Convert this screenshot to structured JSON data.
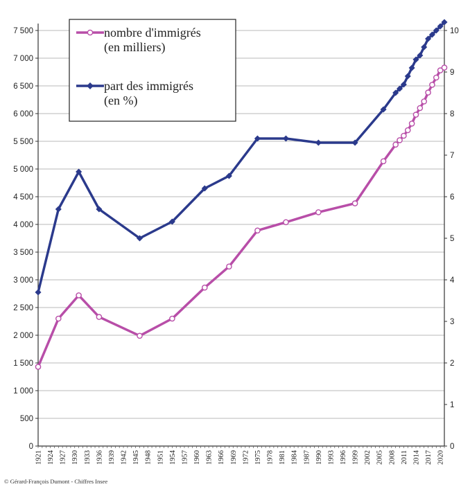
{
  "credit": "© Gérard-François Dumont - Chiffres Insee",
  "colors": {
    "count": "#b84ea8",
    "share": "#2b3a8c",
    "grid": "#b8b8b8"
  },
  "chart_data": {
    "type": "line",
    "title": "",
    "grid": true,
    "legend_position": "top-left",
    "legend": [
      {
        "series": "count",
        "lines": [
          "nombre d'immigrés",
          "(en milliers)"
        ]
      },
      {
        "series": "share",
        "lines": [
          "part des immigrés",
          "(en %)"
        ]
      }
    ],
    "x_ticks": [
      "1921",
      "1924",
      "1927",
      "1930",
      "1933",
      "1936",
      "1939",
      "1942",
      "1945",
      "1948",
      "1951",
      "1954",
      "1957",
      "1960",
      "1963",
      "1966",
      "1969",
      "1972",
      "1975",
      "1978",
      "1981",
      "1984",
      "1987",
      "1990",
      "1993",
      "1996",
      "1999",
      "2002",
      "2005",
      "2008",
      "2011",
      "2014",
      "2017",
      "2020"
    ],
    "y_left": {
      "min": 0,
      "max": 7500,
      "ticks": [
        {
          "v": 0,
          "label": "0"
        },
        {
          "v": 500,
          "label": "500"
        },
        {
          "v": 1000,
          "label": "1 000"
        },
        {
          "v": 1500,
          "label": "1 500"
        },
        {
          "v": 2000,
          "label": "2 000"
        },
        {
          "v": 2500,
          "label": "2 500"
        },
        {
          "v": 3000,
          "label": "3 000"
        },
        {
          "v": 3500,
          "label": "3 500"
        },
        {
          "v": 4000,
          "label": "4 000"
        },
        {
          "v": 4500,
          "label": "4 500"
        },
        {
          "v": 5000,
          "label": "5 000"
        },
        {
          "v": 5500,
          "label": "5 500"
        },
        {
          "v": 6000,
          "label": "6 000"
        },
        {
          "v": 6500,
          "label": "6 500"
        },
        {
          "v": 7000,
          "label": "7 000"
        },
        {
          "v": 7500,
          "label": "7 500"
        }
      ]
    },
    "y_right": {
      "min": 0,
      "max": 10,
      "ticks": [
        {
          "v": 0,
          "label": "0"
        },
        {
          "v": 1,
          "label": "1"
        },
        {
          "v": 2,
          "label": "2"
        },
        {
          "v": 3,
          "label": "3"
        },
        {
          "v": 4,
          "label": "4"
        },
        {
          "v": 5,
          "label": "5"
        },
        {
          "v": 6,
          "label": "6"
        },
        {
          "v": 7,
          "label": "7"
        },
        {
          "v": 8,
          "label": "8"
        },
        {
          "v": 9,
          "label": "9"
        },
        {
          "v": 10,
          "label": "10"
        }
      ]
    },
    "series": [
      {
        "name": "nombre d'immigrés (en milliers)",
        "key": "count",
        "axis": "left",
        "marker": "circle",
        "x": [
          1921,
          1926,
          1931,
          1936,
          1946,
          1954,
          1962,
          1968,
          1975,
          1982,
          1990,
          1999,
          2006,
          2009,
          2010,
          2011,
          2012,
          2013,
          2014,
          2015,
          2016,
          2017,
          2018,
          2019,
          2020,
          2021
        ],
        "y": [
          1430,
          2300,
          2720,
          2330,
          1990,
          2300,
          2860,
          3240,
          3890,
          4040,
          4220,
          4380,
          5140,
          5440,
          5520,
          5600,
          5700,
          5820,
          5980,
          6100,
          6220,
          6380,
          6520,
          6650,
          6780,
          6830
        ]
      },
      {
        "name": "part des immigrés (en %)",
        "key": "share",
        "axis": "right",
        "marker": "diamond",
        "x": [
          1921,
          1926,
          1931,
          1936,
          1946,
          1954,
          1962,
          1968,
          1975,
          1982,
          1990,
          1999,
          2006,
          2009,
          2010,
          2011,
          2012,
          2013,
          2014,
          2015,
          2016,
          2017,
          2018,
          2019,
          2020,
          2021
        ],
        "y": [
          3.7,
          5.7,
          6.6,
          5.7,
          5.0,
          5.4,
          6.2,
          6.5,
          7.4,
          7.4,
          7.3,
          7.3,
          8.1,
          8.5,
          8.6,
          8.7,
          8.9,
          9.1,
          9.3,
          9.4,
          9.6,
          9.8,
          9.9,
          10.0,
          10.1,
          10.2
        ]
      }
    ]
  }
}
